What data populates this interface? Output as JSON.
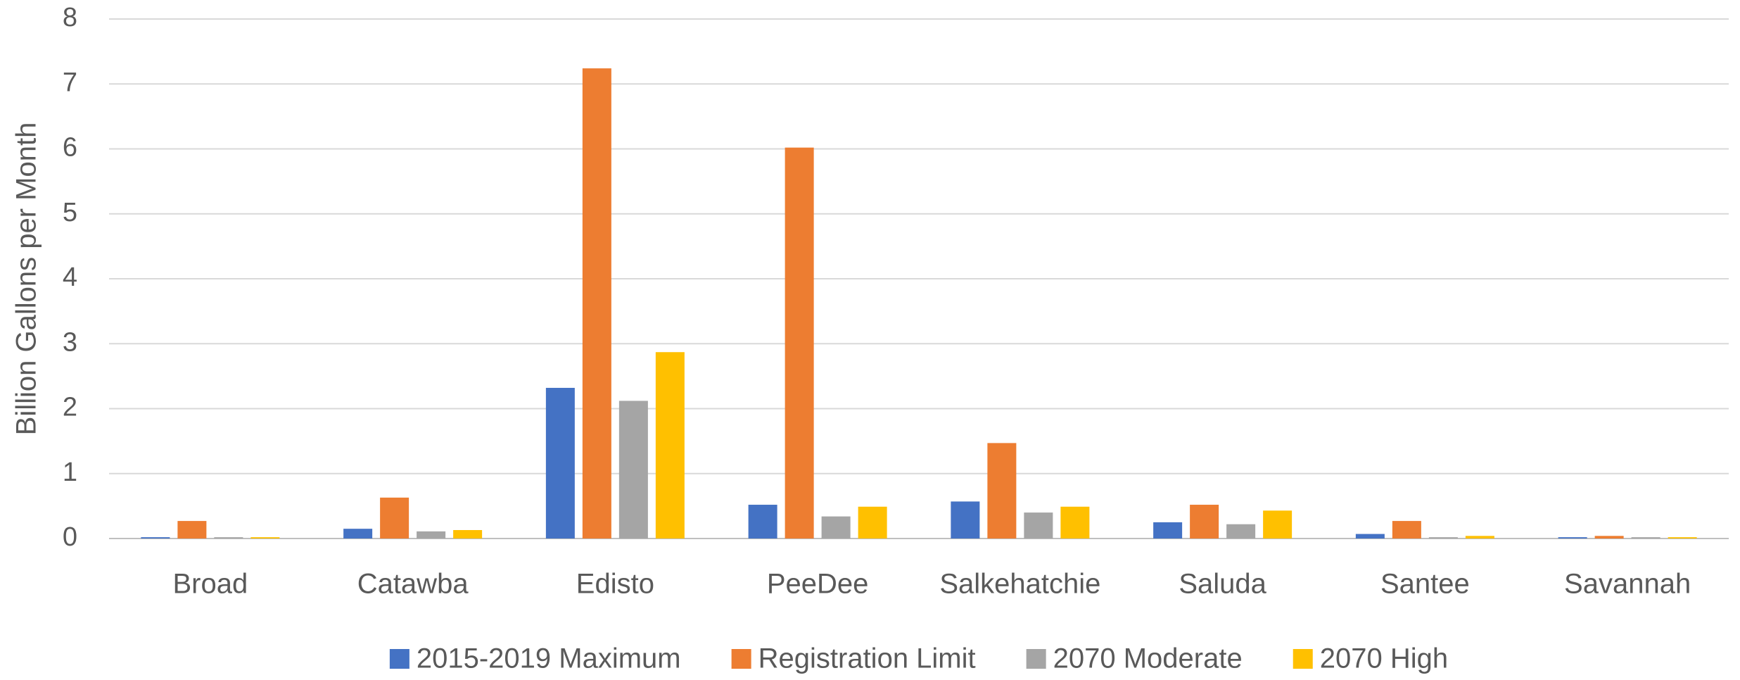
{
  "chart_data": {
    "type": "bar",
    "ylabel": "Billion Gallons per Month",
    "categories": [
      "Broad",
      "Catawba",
      "Edisto",
      "PeeDee",
      "Salkehatchie",
      "Saluda",
      "Santee",
      "Savannah"
    ],
    "series": [
      {
        "name": "2015-2019 Maximum",
        "color": "#4472c4",
        "values": [
          0.02,
          0.15,
          2.32,
          0.52,
          0.57,
          0.25,
          0.07,
          0.02
        ]
      },
      {
        "name": "Registration Limit",
        "color": "#ed7d31",
        "values": [
          0.27,
          0.63,
          7.24,
          6.02,
          1.47,
          0.52,
          0.27,
          0.04
        ]
      },
      {
        "name": "2070 Moderate",
        "color": "#a5a5a5",
        "values": [
          0.02,
          0.11,
          2.12,
          0.34,
          0.4,
          0.22,
          0.02,
          0.02
        ]
      },
      {
        "name": "2070 High",
        "color": "#ffc000",
        "values": [
          0.02,
          0.13,
          2.87,
          0.49,
          0.49,
          0.43,
          0.04,
          0.02
        ]
      }
    ],
    "ylim": [
      0,
      8
    ],
    "yticks": [
      0,
      1,
      2,
      3,
      4,
      5,
      6,
      7,
      8
    ],
    "grid": true,
    "legend": "bottom"
  }
}
